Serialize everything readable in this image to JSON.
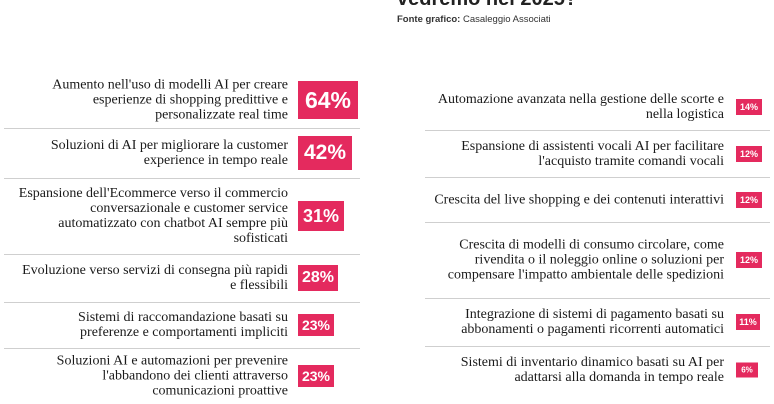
{
  "header": {
    "title": "vedremo nel 2025?",
    "source_label": "Fonte grafico:",
    "source_value": "Casaleggio Associati"
  },
  "colors": {
    "accent": "#e42a5e",
    "divider": "#cfcfcf"
  },
  "chart_data": [
    {
      "type": "table",
      "column": "left",
      "rows": [
        {
          "label": "Aumento nell'uso di modelli AI per creare esperienze di shopping predittive e personalizzate real time",
          "value": 64,
          "display": "64%"
        },
        {
          "label": "Soluzioni di AI per migliorare la customer experience in tempo reale",
          "value": 42,
          "display": "42%"
        },
        {
          "label": "Espansione dell'Ecommerce verso il commercio conversazionale e customer service automatizzato con chatbot AI sempre più sofisticati",
          "value": 31,
          "display": "31%"
        },
        {
          "label": "Evoluzione verso servizi di consegna più rapidi e flessibili",
          "value": 28,
          "display": "28%"
        },
        {
          "label": "Sistemi di raccomandazione basati su preferenze e comportamenti impliciti",
          "value": 23,
          "display": "23%"
        },
        {
          "label": "Soluzioni AI e automazioni per prevenire l'abbandono dei clienti attraverso comunicazioni proattive",
          "value": 23,
          "display": "23%"
        }
      ]
    },
    {
      "type": "table",
      "column": "right",
      "rows": [
        {
          "label": "Automazione avanzata nella gestione delle scorte e nella logistica",
          "value": 14,
          "display": "14%"
        },
        {
          "label": "Espansione di assistenti vocali AI per facilitare l'acquisto tramite comandi vocali",
          "value": 12,
          "display": "12%"
        },
        {
          "label": "Crescita del live shopping e dei contenuti interattivi",
          "value": 12,
          "display": "12%"
        },
        {
          "label": "Crescita di modelli di consumo circolare, come rivendita o il noleggio online o soluzioni per compensare l'impatto ambientale delle spedizioni",
          "value": 12,
          "display": "12%"
        },
        {
          "label": "Integrazione di sistemi di pagamento basati su abbonamenti o pagamenti ricorrenti automatici",
          "value": 11,
          "display": "11%"
        },
        {
          "label": "Sistemi di inventario dinamico basati su AI per adattarsi alla domanda in tempo reale",
          "value": 6,
          "display": "6%"
        }
      ]
    }
  ]
}
